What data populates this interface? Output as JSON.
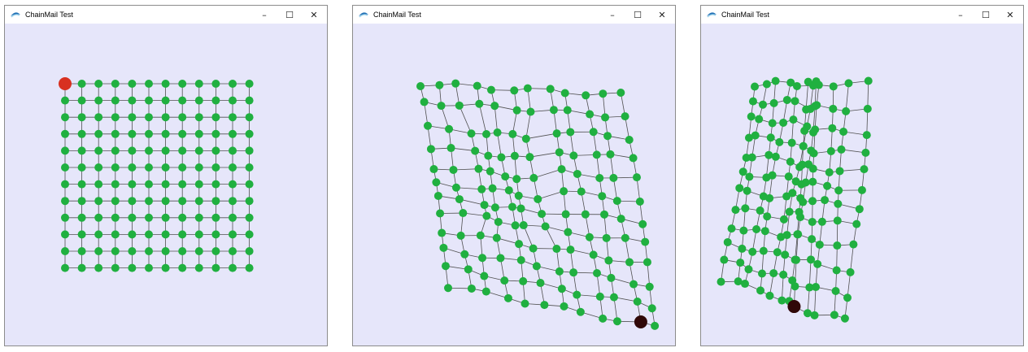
{
  "window_title": "ChainMail Test",
  "controls": {
    "minimize": "–",
    "maximize": "☐",
    "close": "✕"
  },
  "colors": {
    "background": "#e6e6fa",
    "node": "#20b040",
    "link": "#505050",
    "selected_node": "#d83020",
    "dragged_node": "#300808"
  },
  "icons": [
    "app-icon",
    "minimize-icon",
    "maximize-icon",
    "close-icon"
  ],
  "windows": [
    {
      "state": "initial grid",
      "grid": "12x12",
      "selected_node": "top-left"
    },
    {
      "state": "deformed",
      "grid": "12x12",
      "dragged_node": "bottom-right"
    },
    {
      "state": "deformed",
      "grid": "12x12",
      "dragged_node": "bottom"
    }
  ]
}
